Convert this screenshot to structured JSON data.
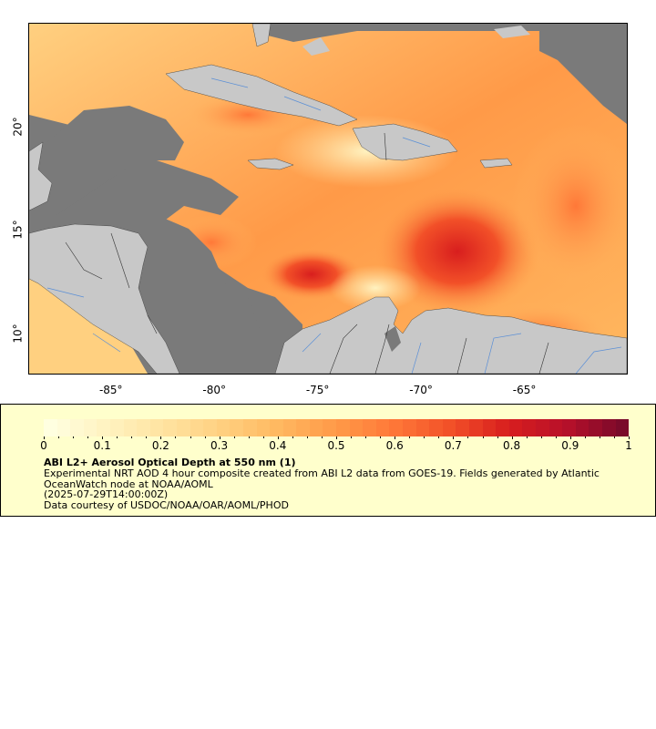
{
  "map": {
    "x_ticks": [
      {
        "label": "-85°",
        "lon": -85
      },
      {
        "label": "-80°",
        "lon": -80
      },
      {
        "label": "-75°",
        "lon": -75
      },
      {
        "label": "-70°",
        "lon": -70
      },
      {
        "label": "-65°",
        "lon": -65
      }
    ],
    "y_ticks": [
      {
        "label": "20°",
        "lat": 20
      },
      {
        "label": "15°",
        "lat": 15
      },
      {
        "label": "10°",
        "lat": 10
      }
    ],
    "lon_range": [
      -89,
      -60
    ],
    "lat_range": [
      8,
      25
    ],
    "colors": {
      "ocean_nodata": "#7a7a7a",
      "land": "#c8c8c8",
      "rivers": "#5b8fd6",
      "borders": "#333333"
    }
  },
  "legend": {
    "tick_labels": [
      "0",
      "0.1",
      "0.2",
      "0.3",
      "0.4",
      "0.5",
      "0.6",
      "0.7",
      "0.8",
      "0.9",
      "1"
    ],
    "colorbar_range": [
      0,
      1
    ],
    "colorbar_colors": [
      "#ffffe0",
      "#fff2c0",
      "#ffe3a0",
      "#ffd080",
      "#ffb860",
      "#ff9a48",
      "#ff7838",
      "#f25028",
      "#d81e1e",
      "#b8102a",
      "#7a0a2a"
    ],
    "title": "ABI L2+ Aerosol Optical Depth at 550 nm (1)",
    "line1": "Experimental NRT AOD 4 hour composite created from ABI L2 data from GOES-19. Fields generated by Atlantic OceanWatch node at NOAA/AOML",
    "line2": "(2025-07-29T14:00:00Z)",
    "line3": "Data courtesy of USDOC/NOAA/OAR/AOML/PHOD"
  }
}
